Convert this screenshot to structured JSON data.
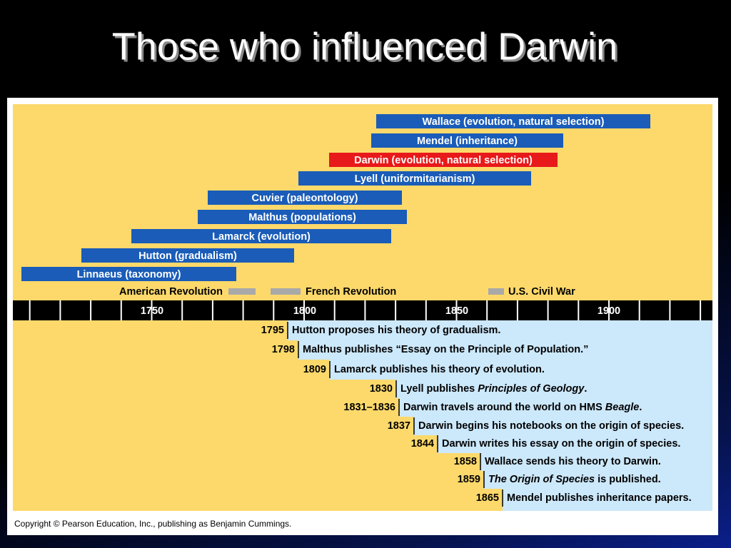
{
  "title": "Those who influenced Darwin",
  "timeline": {
    "people": [
      "Wallace (evolution, natural selection)",
      "Mendel (inheritance)",
      "Darwin (evolution, natural selection)",
      "Lyell (uniformitarianism)",
      "Cuvier (paleontology)",
      "Malthus (populations)",
      "Lamarck (evolution)",
      "Hutton (gradualism)",
      "Linnaeus (taxonomy)"
    ],
    "periods": [
      "American Revolution",
      "French Revolution",
      "U.S. Civil War"
    ],
    "axis_labels": [
      "1750",
      "1800",
      "1850",
      "1900"
    ]
  },
  "events": [
    {
      "year": "1795",
      "text": [
        {
          "text": "Hutton proposes his theory of gradualism."
        }
      ]
    },
    {
      "year": "1798",
      "text": [
        {
          "text": "Malthus publishes “Essay on the Principle of Population.”"
        }
      ]
    },
    {
      "year": "1809",
      "text": [
        {
          "text": "Lamarck publishes his theory of evolution."
        }
      ]
    },
    {
      "year": "1830",
      "text": [
        {
          "text": "Lyell publishes "
        },
        {
          "text": "Principles of Geology",
          "italic": true
        },
        {
          "text": "."
        }
      ]
    },
    {
      "year": "1831–1836",
      "text": [
        {
          "text": "Darwin travels around the world on HMS "
        },
        {
          "text": "Beagle",
          "italic": true
        },
        {
          "text": "."
        }
      ]
    },
    {
      "year": "1837",
      "text": [
        {
          "text": "Darwin begins his notebooks on the origin of species."
        }
      ]
    },
    {
      "year": "1844",
      "text": [
        {
          "text": "Darwin writes his essay on the origin of species."
        }
      ]
    },
    {
      "year": "1858",
      "text": [
        {
          "text": "Wallace sends his theory to Darwin."
        }
      ]
    },
    {
      "year": "1859",
      "text": [
        {
          "text": "The Origin of Species",
          "italic": true
        },
        {
          "text": " is published."
        }
      ]
    },
    {
      "year": "1865",
      "text": [
        {
          "text": "Mendel publishes inheritance papers."
        }
      ]
    }
  ],
  "copyright": "Copyright © Pearson Education, Inc., publishing as Benjamin Cummings."
}
